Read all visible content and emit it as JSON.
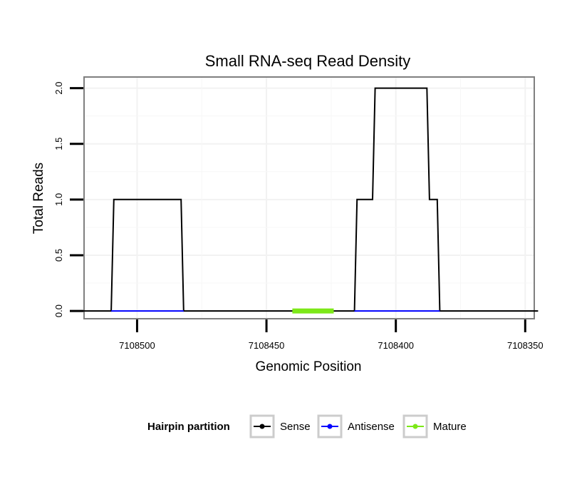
{
  "chart_data": {
    "type": "line",
    "title": "Small RNA-seq Read Density",
    "xlabel": "Genomic Position",
    "ylabel": "Total Reads",
    "x_reversed": true,
    "xlim": [
      7108520.5,
      7108346.5
    ],
    "ylim": [
      -0.07,
      2.1
    ],
    "x_ticks": [
      7108500,
      7108450,
      7108400,
      7108350
    ],
    "x_tick_labels": [
      "7108500",
      "7108450",
      "7108400",
      "7108350"
    ],
    "y_ticks": [
      0,
      0.5,
      1,
      1.5,
      2
    ],
    "y_tick_labels": [
      "0.0",
      "0.5",
      "1.0",
      "1.5",
      "2.0"
    ],
    "grid": true,
    "legend": {
      "title": "Hairpin partition",
      "position": "bottom",
      "entries": [
        "Sense",
        "Antisense",
        "Mature"
      ]
    },
    "series": [
      {
        "name": "Sense",
        "color": "#000000",
        "x": [
          7108521,
          7108510,
          7108509,
          7108483,
          7108482,
          7108416,
          7108415,
          7108409,
          7108408,
          7108388,
          7108387,
          7108384,
          7108383,
          7108349,
          7108345
        ],
        "y": [
          0,
          0,
          1,
          1,
          0,
          0,
          1,
          1,
          2,
          2,
          1,
          1,
          0,
          0,
          0
        ]
      },
      {
        "name": "Antisense",
        "color": "#0000ff",
        "segments": [
          {
            "x": [
              7108510,
              7108482
            ],
            "y": [
              0,
              0
            ]
          },
          {
            "x": [
              7108416,
              7108383
            ],
            "y": [
              0,
              0
            ]
          }
        ]
      },
      {
        "name": "Mature",
        "color": "#7ce817",
        "segments": [
          {
            "x": [
              7108440,
              7108424
            ],
            "y": [
              0,
              0
            ]
          }
        ]
      }
    ]
  }
}
